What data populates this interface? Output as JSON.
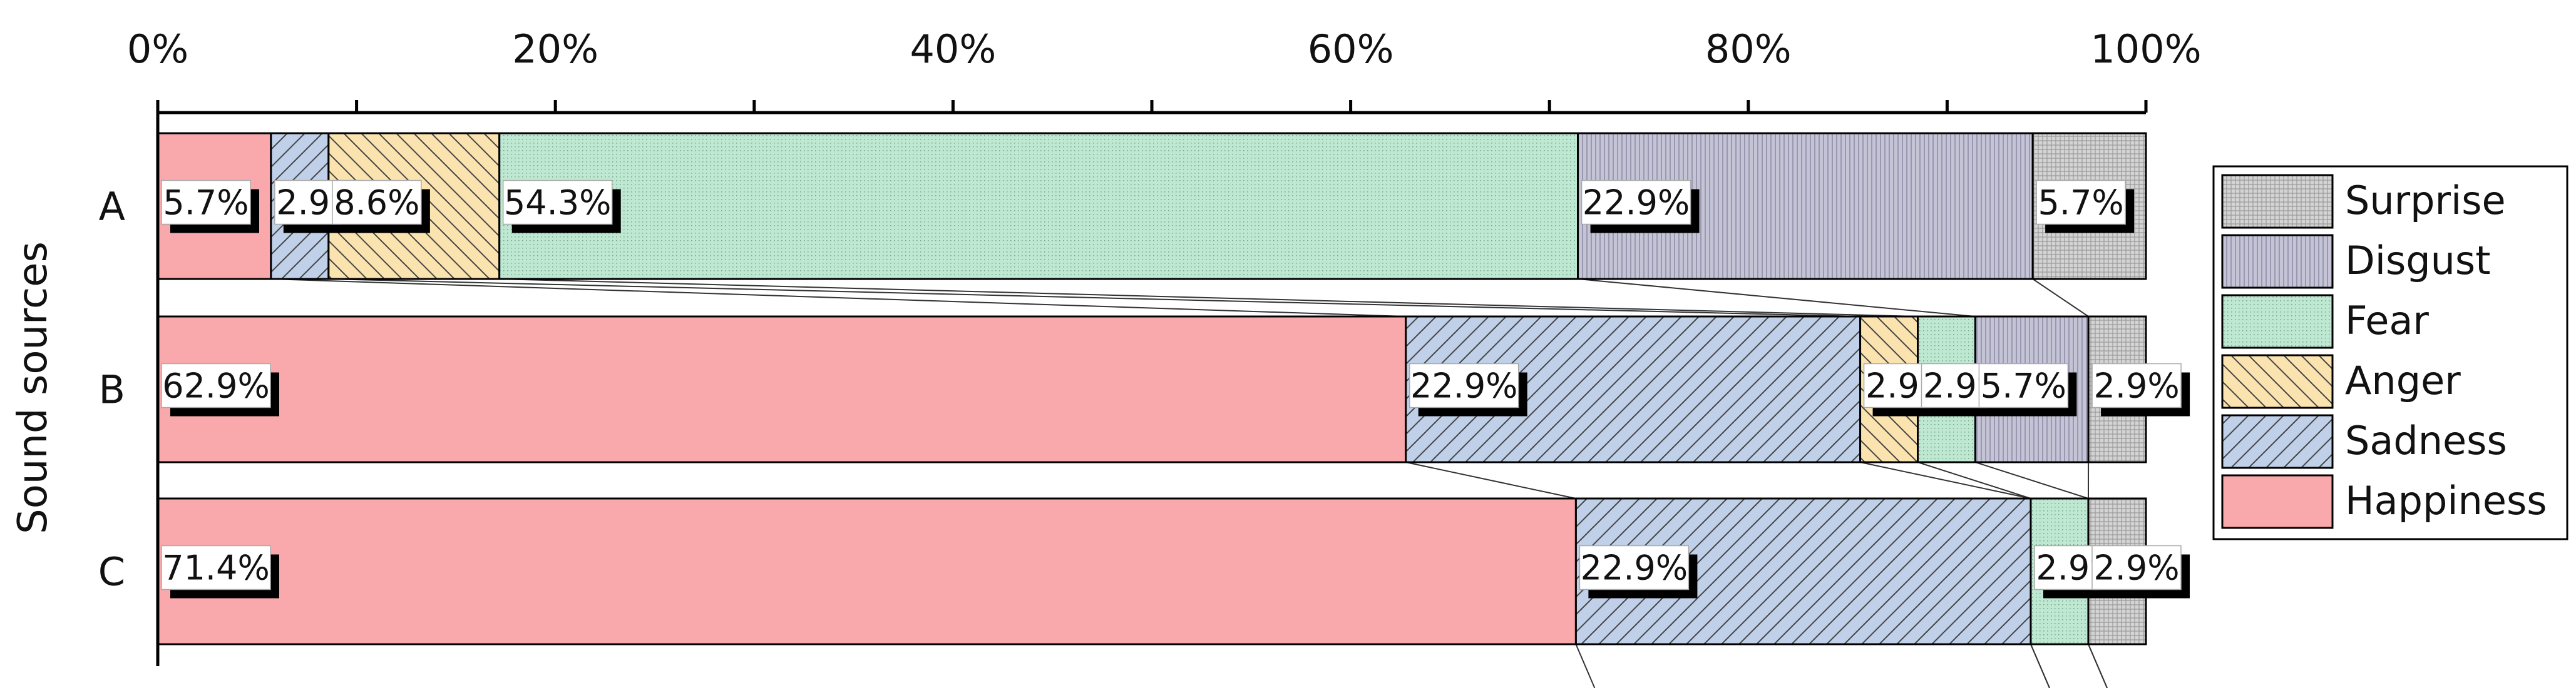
{
  "chart_data": {
    "type": "bar",
    "orientation": "horizontal",
    "stacked": true,
    "normalized": true,
    "title": "",
    "xlabel": "",
    "ylabel": "Sound sources",
    "xlim": [
      0,
      100
    ],
    "x_ticks": [
      "0%",
      "20%",
      "40%",
      "60%",
      "80%",
      "100%"
    ],
    "categories": [
      "A",
      "B",
      "C"
    ],
    "legend_placement": "right",
    "series": [
      {
        "name": "Happiness",
        "values": [
          5.7,
          62.9,
          71.4
        ],
        "labels": [
          "5.7%",
          "62.9%",
          "71.4%"
        ],
        "color": "#f9a8ab",
        "pattern": "none"
      },
      {
        "name": "Sadness",
        "values": [
          2.9,
          22.9,
          22.9
        ],
        "labels": [
          "2.9%",
          "22.9%",
          "22.9%"
        ],
        "color": "#bfd0e8",
        "pattern": "diagonal"
      },
      {
        "name": "Anger",
        "values": [
          8.6,
          2.9,
          0
        ],
        "labels": [
          "8.6%",
          "2.9%",
          ""
        ],
        "color": "#fbe3b0",
        "pattern": "back-diagonal"
      },
      {
        "name": "Fear",
        "values": [
          54.3,
          2.9,
          2.9
        ],
        "labels": [
          "54.3%",
          "2.9%",
          "2.9%"
        ],
        "color": "#bfe8d2",
        "pattern": "fine-dots"
      },
      {
        "name": "Disgust",
        "values": [
          22.9,
          5.7,
          0
        ],
        "labels": [
          "22.9%",
          "5.7%",
          ""
        ],
        "color": "#c4c4d6",
        "pattern": "vertical-lines"
      },
      {
        "name": "Surprise",
        "values": [
          5.7,
          2.9,
          2.9
        ],
        "labels": [
          "5.7%",
          "2.9%",
          "2.9%"
        ],
        "color": "#d4d4d4",
        "pattern": "grid"
      }
    ],
    "legend_order": [
      "Surprise",
      "Disgust",
      "Fear",
      "Anger",
      "Sadness",
      "Happiness"
    ]
  }
}
